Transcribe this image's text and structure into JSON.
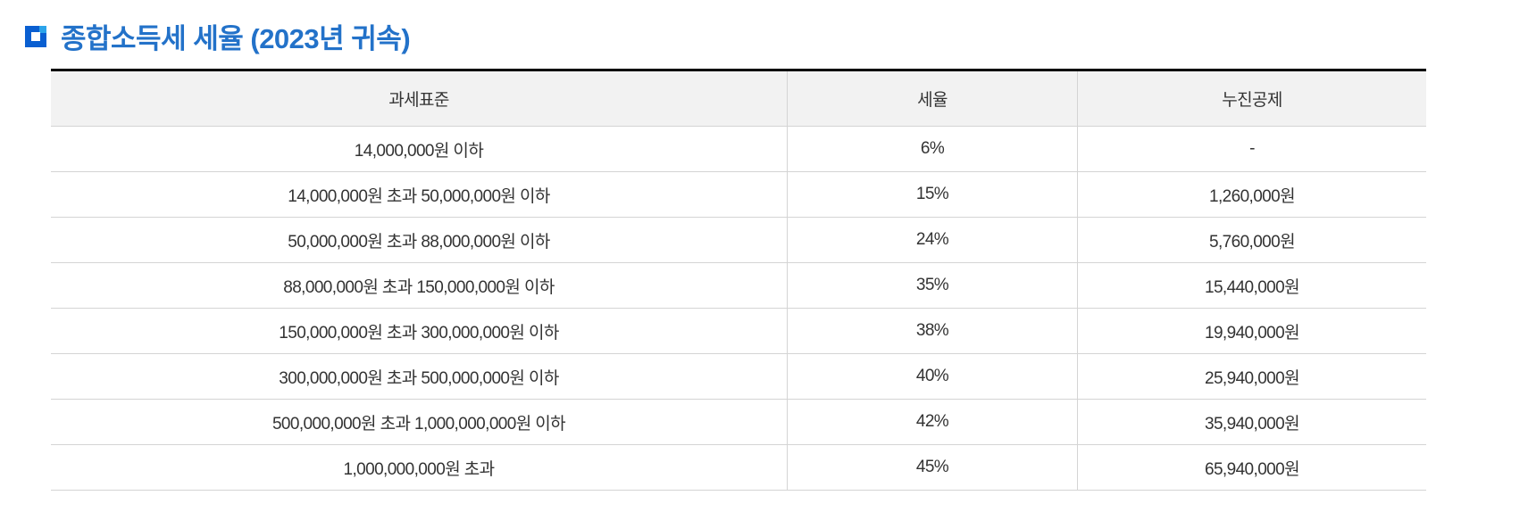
{
  "title": "종합소득세 세율 (2023년 귀속)",
  "colors": {
    "title": "#2372c9",
    "icon": "#0a5fd1"
  },
  "table": {
    "headers": [
      "과세표준",
      "세율",
      "누진공제"
    ],
    "rows": [
      [
        "14,000,000원 이하",
        "6%",
        "-"
      ],
      [
        "14,000,000원 초과 50,000,000원 이하",
        "15%",
        "1,260,000원"
      ],
      [
        "50,000,000원 초과 88,000,000원 이하",
        "24%",
        "5,760,000원"
      ],
      [
        "88,000,000원 초과 150,000,000원 이하",
        "35%",
        "15,440,000원"
      ],
      [
        "150,000,000원 초과 300,000,000원 이하",
        "38%",
        "19,940,000원"
      ],
      [
        "300,000,000원 초과 500,000,000원 이하",
        "40%",
        "25,940,000원"
      ],
      [
        "500,000,000원 초과 1,000,000,000원 이하",
        "42%",
        "35,940,000원"
      ],
      [
        "1,000,000,000원 초과",
        "45%",
        "65,940,000원"
      ]
    ]
  }
}
